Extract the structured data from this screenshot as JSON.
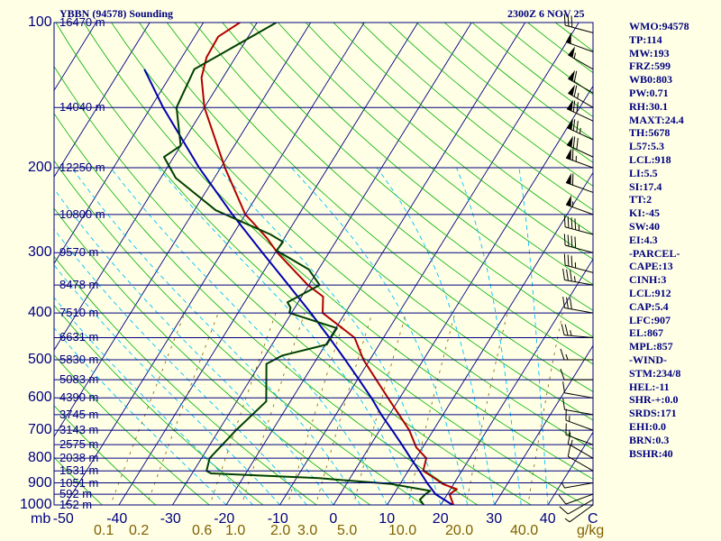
{
  "header": {
    "station": "YBBN (94578) Sounding",
    "datetime": "2300Z  6 NOV 25"
  },
  "indices": [
    "WMO:94578",
    "TP:114",
    "MW:193",
    "FRZ:599",
    "WB0:803",
    "PW:0.71",
    "RH:30.1",
    "MAXT:24.4",
    "TH:5678",
    "L57:5.3",
    "LCL:918",
    "LI:5.5",
    "SI:17.4",
    "TT:2",
    "KI:-45",
    "SW:40",
    "EI:4.3",
    "-PARCEL-",
    "CAPE:13",
    "CINH:3",
    "LCL:912",
    "CAP:5.4",
    "LFC:907",
    "EL:867",
    "MPL:857",
    "-WIND-",
    "STM:234/8",
    "HEL:-11",
    "SHR-+:0.0",
    "SRDS:171",
    "EHI:0.0",
    "BRN:0.3",
    "BSHR:40"
  ],
  "colors": {
    "background": "#ffffe6",
    "isobar": "#000080",
    "isotherm": "#000080",
    "dry_adiabat": "#00b000",
    "moist_adiabat": "#00c0ff",
    "mixing_ratio": "#806000",
    "temperature": "#b00000",
    "dewpoint": "#004000",
    "parcel": "#0000b0",
    "wind_barb": "#000000"
  },
  "chart_data": {
    "type": "skew-t log-p",
    "y_axis": {
      "unit": "mb",
      "scale": "log",
      "range": [
        1000,
        100
      ],
      "pressure_ticks": [
        100,
        200,
        300,
        400,
        500,
        600,
        700,
        800,
        900,
        1000
      ],
      "pressure_tick_labels": [
        "100",
        "200",
        "300",
        "400",
        "500",
        "600",
        "700",
        "800",
        "900",
        "1000"
      ],
      "height_labels": [
        {
          "p": 100,
          "label": "16470 m"
        },
        {
          "p": 150,
          "label": "14040 m"
        },
        {
          "p": 200,
          "label": "12250 m"
        },
        {
          "p": 250,
          "label": "10800 m"
        },
        {
          "p": 300,
          "label": "9570 m"
        },
        {
          "p": 350,
          "label": "8478 m"
        },
        {
          "p": 400,
          "label": "7510 m"
        },
        {
          "p": 450,
          "label": "6631 m"
        },
        {
          "p": 500,
          "label": "5830 m"
        },
        {
          "p": 550,
          "label": "5083 m"
        },
        {
          "p": 600,
          "label": "4390 m"
        },
        {
          "p": 650,
          "label": "3745 m"
        },
        {
          "p": 700,
          "label": "3143 m"
        },
        {
          "p": 750,
          "label": "2575 m"
        },
        {
          "p": 800,
          "label": "2038 m"
        },
        {
          "p": 850,
          "label": "1531 m"
        },
        {
          "p": 900,
          "label": "1051 m"
        },
        {
          "p": 950,
          "label": "592 m"
        },
        {
          "p": 1000,
          "label": "152 m"
        }
      ]
    },
    "x_axis": {
      "unit": "C",
      "temperature_ticks": [
        -50,
        -40,
        -30,
        -20,
        -10,
        0,
        10,
        20,
        30,
        40
      ],
      "temperature_tick_labels": [
        "-50",
        "-40",
        "-30",
        "-20",
        "-10",
        "0",
        "10",
        "20",
        "30",
        "40"
      ],
      "end_label": "C"
    },
    "mixing_ratio_axis": {
      "unit": "g/kg",
      "ticks": [
        0.1,
        0.2,
        0.6,
        1.0,
        2.0,
        3.0,
        5.0,
        10.0,
        20.0,
        40.0
      ],
      "tick_labels": [
        "0.1",
        "0.2",
        "0.6",
        "1.0",
        "2.0",
        "3.0",
        "5.0",
        "10.0",
        "20.0",
        "40.0"
      ]
    },
    "series": [
      {
        "name": "temperature",
        "points": [
          {
            "p": 1003,
            "t": 22.5
          },
          {
            "p": 975,
            "t": 21.4
          },
          {
            "p": 950,
            "t": 20.4
          },
          {
            "p": 928,
            "t": 21.2
          },
          {
            "p": 905,
            "t": 18.0
          },
          {
            "p": 870,
            "t": 14.8
          },
          {
            "p": 850,
            "t": 12.8
          },
          {
            "p": 800,
            "t": 11.9
          },
          {
            "p": 760,
            "t": 8.8
          },
          {
            "p": 700,
            "t": 5.5
          },
          {
            "p": 600,
            "t": -2.2
          },
          {
            "p": 500,
            "t": -11.2
          },
          {
            "p": 450,
            "t": -15.4
          },
          {
            "p": 400,
            "t": -24.2
          },
          {
            "p": 370,
            "t": -26.0
          },
          {
            "p": 350,
            "t": -30.2
          },
          {
            "p": 300,
            "t": -39.6
          },
          {
            "p": 280,
            "t": -43.2
          },
          {
            "p": 260,
            "t": -47.6
          },
          {
            "p": 250,
            "t": -50.0
          },
          {
            "p": 200,
            "t": -59.2
          },
          {
            "p": 150,
            "t": -70.0
          },
          {
            "p": 130,
            "t": -74.0
          },
          {
            "p": 118,
            "t": -75.4
          },
          {
            "p": 107,
            "t": -75.6
          },
          {
            "p": 100,
            "t": -73.2
          }
        ]
      },
      {
        "name": "dewpoint",
        "points": [
          {
            "p": 1003,
            "t": 17.0
          },
          {
            "p": 975,
            "t": 15.5
          },
          {
            "p": 950,
            "t": 15.9
          },
          {
            "p": 935,
            "t": 16.4
          },
          {
            "p": 905,
            "t": 8.4
          },
          {
            "p": 880,
            "t": -5.8
          },
          {
            "p": 860,
            "t": -26.5
          },
          {
            "p": 850,
            "t": -27.6
          },
          {
            "p": 800,
            "t": -28.5
          },
          {
            "p": 700,
            "t": -26.8
          },
          {
            "p": 610,
            "t": -24.5
          },
          {
            "p": 510,
            "t": -28.8
          },
          {
            "p": 490,
            "t": -26.8
          },
          {
            "p": 465,
            "t": -19.8
          },
          {
            "p": 430,
            "t": -19.8
          },
          {
            "p": 400,
            "t": -30.4
          },
          {
            "p": 390,
            "t": -30.8
          },
          {
            "p": 380,
            "t": -32.0
          },
          {
            "p": 350,
            "t": -28.0
          },
          {
            "p": 325,
            "t": -31.8
          },
          {
            "p": 297,
            "t": -40.0
          },
          {
            "p": 285,
            "t": -39.8
          },
          {
            "p": 275,
            "t": -43.0
          },
          {
            "p": 245,
            "t": -56.0
          },
          {
            "p": 210,
            "t": -67.2
          },
          {
            "p": 190,
            "t": -71.8
          },
          {
            "p": 180,
            "t": -70.0
          },
          {
            "p": 150,
            "t": -75.2
          },
          {
            "p": 125,
            "t": -76.3
          },
          {
            "p": 100,
            "t": -66.4
          }
        ]
      },
      {
        "name": "parcel",
        "points": [
          {
            "p": 1000,
            "t": 22.2
          },
          {
            "p": 950,
            "t": 17.8
          },
          {
            "p": 900,
            "t": 14.9
          },
          {
            "p": 850,
            "t": 12.1
          },
          {
            "p": 800,
            "t": 9.0
          },
          {
            "p": 750,
            "t": 5.8
          },
          {
            "p": 700,
            "t": 2.3
          },
          {
            "p": 650,
            "t": -1.5
          },
          {
            "p": 600,
            "t": -5.3
          },
          {
            "p": 550,
            "t": -9.7
          },
          {
            "p": 500,
            "t": -14.6
          },
          {
            "p": 450,
            "t": -20.1
          },
          {
            "p": 400,
            "t": -26.4
          },
          {
            "p": 350,
            "t": -33.8
          },
          {
            "p": 300,
            "t": -42.4
          },
          {
            "p": 250,
            "t": -52.4
          },
          {
            "p": 200,
            "t": -64.0
          },
          {
            "p": 150,
            "t": -77.7
          },
          {
            "p": 125,
            "t": -85.6
          }
        ]
      }
    ],
    "wind_barbs": [
      {
        "p": 1000,
        "dir": 234,
        "spd": 5
      },
      {
        "p": 975,
        "dir": 240,
        "spd": 10
      },
      {
        "p": 950,
        "dir": 250,
        "spd": 10
      },
      {
        "p": 900,
        "dir": 260,
        "spd": 5
      },
      {
        "p": 850,
        "dir": 300,
        "spd": 10
      },
      {
        "p": 800,
        "dir": 300,
        "spd": 15
      },
      {
        "p": 750,
        "dir": 290,
        "spd": 15
      },
      {
        "p": 700,
        "dir": 290,
        "spd": 15
      },
      {
        "p": 650,
        "dir": 280,
        "spd": 10
      },
      {
        "p": 600,
        "dir": 280,
        "spd": 10
      },
      {
        "p": 550,
        "dir": 270,
        "spd": 10
      },
      {
        "p": 500,
        "dir": 270,
        "spd": 15
      },
      {
        "p": 450,
        "dir": 275,
        "spd": 25
      },
      {
        "p": 400,
        "dir": 280,
        "spd": 30
      },
      {
        "p": 350,
        "dir": 280,
        "spd": 35
      },
      {
        "p": 330,
        "dir": 285,
        "spd": 35
      },
      {
        "p": 300,
        "dir": 285,
        "spd": 40
      },
      {
        "p": 275,
        "dir": 285,
        "spd": 45
      },
      {
        "p": 250,
        "dir": 290,
        "spd": 55
      },
      {
        "p": 225,
        "dir": 290,
        "spd": 60
      },
      {
        "p": 200,
        "dir": 290,
        "spd": 65
      },
      {
        "p": 190,
        "dir": 295,
        "spd": 70
      },
      {
        "p": 175,
        "dir": 295,
        "spd": 75
      },
      {
        "p": 160,
        "dir": 295,
        "spd": 70
      },
      {
        "p": 150,
        "dir": 300,
        "spd": 65
      },
      {
        "p": 140,
        "dir": 300,
        "spd": 60
      },
      {
        "p": 125,
        "dir": 300,
        "spd": 55
      },
      {
        "p": 115,
        "dir": 290,
        "spd": 50
      },
      {
        "p": 105,
        "dir": 285,
        "spd": 30
      }
    ]
  }
}
